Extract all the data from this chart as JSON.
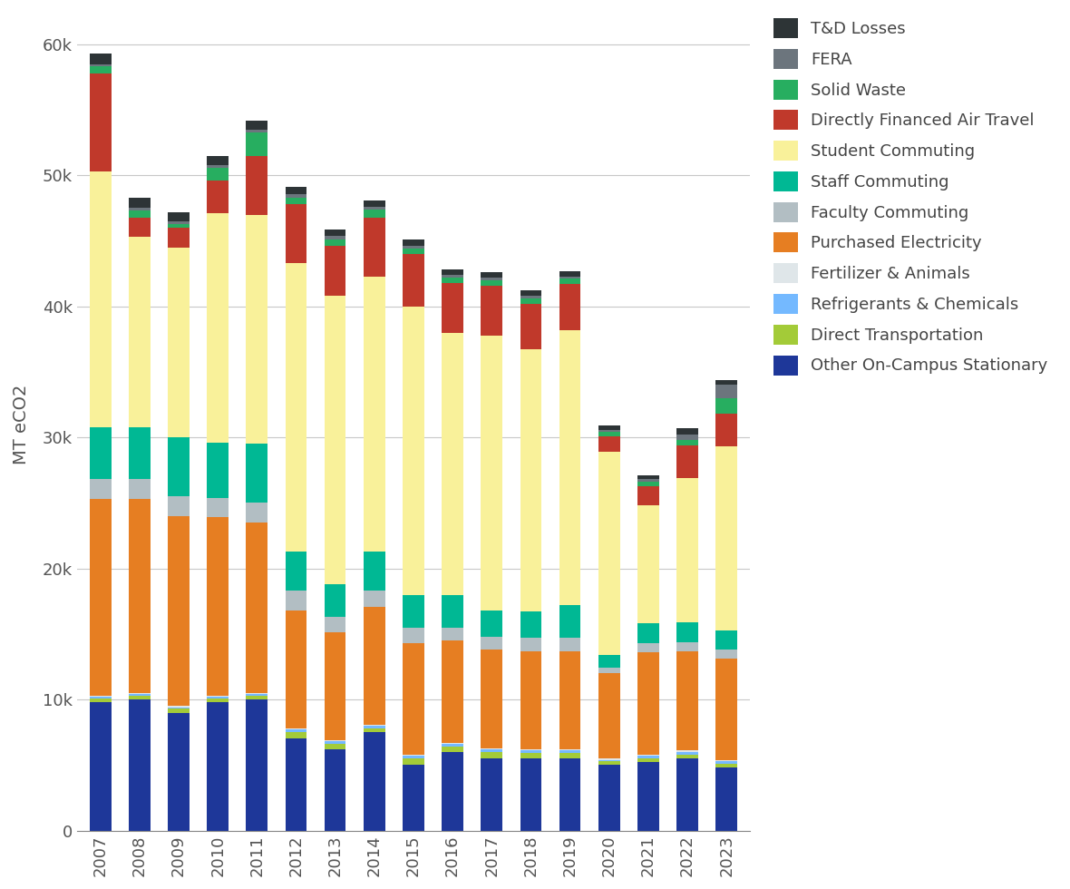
{
  "years": [
    2007,
    2008,
    2009,
    2010,
    2011,
    2012,
    2013,
    2014,
    2015,
    2016,
    2017,
    2018,
    2019,
    2020,
    2021,
    2022,
    2023
  ],
  "categories": [
    "Other On-Campus Stationary",
    "Direct Transportation",
    "Refrigerants & Chemicals",
    "Fertilizer & Animals",
    "Purchased Electricity",
    "Faculty Commuting",
    "Staff Commuting",
    "Student Commuting",
    "Directly Financed Air Travel",
    "Solid Waste",
    "FERA",
    "T&D Losses"
  ],
  "colors": [
    "#1e3799",
    "#a3cb38",
    "#74b9ff",
    "#dfe6e9",
    "#e67e22",
    "#b2bec3",
    "#00b894",
    "#f9f19a",
    "#c0392b",
    "#27ae60",
    "#6c757d",
    "#2d3436"
  ],
  "data": {
    "Other On-Campus Stationary": [
      9800,
      10000,
      9000,
      9800,
      10000,
      7000,
      6200,
      7500,
      5000,
      6000,
      5500,
      5500,
      5500,
      5000,
      5200,
      5500,
      4800
    ],
    "Direct Transportation": [
      300,
      300,
      300,
      300,
      300,
      500,
      400,
      300,
      500,
      400,
      500,
      400,
      400,
      300,
      300,
      300,
      300
    ],
    "Refrigerants & Chemicals": [
      100,
      100,
      100,
      100,
      100,
      200,
      200,
      200,
      200,
      200,
      200,
      200,
      200,
      100,
      200,
      200,
      200
    ],
    "Fertilizer & Animals": [
      100,
      100,
      100,
      100,
      100,
      100,
      100,
      100,
      100,
      100,
      100,
      100,
      100,
      100,
      100,
      100,
      100
    ],
    "Purchased Electricity": [
      15000,
      14800,
      14500,
      13600,
      13000,
      9000,
      8200,
      9000,
      8500,
      7800,
      7500,
      7500,
      7500,
      6500,
      7800,
      7600,
      7700
    ],
    "Faculty Commuting": [
      1500,
      1500,
      1500,
      1500,
      1500,
      1500,
      1200,
      1200,
      1200,
      1000,
      1000,
      1000,
      1000,
      400,
      700,
      700,
      700
    ],
    "Staff Commuting": [
      4000,
      4000,
      4500,
      4200,
      4500,
      3000,
      2500,
      3000,
      2500,
      2500,
      2000,
      2000,
      2500,
      1000,
      1500,
      1500,
      1500
    ],
    "Student Commuting": [
      19500,
      14500,
      14500,
      17500,
      17500,
      22000,
      22000,
      21000,
      22000,
      20000,
      21000,
      20000,
      21000,
      15500,
      9000,
      11000,
      14000
    ],
    "Directly Financed Air Travel": [
      7500,
      1500,
      1500,
      2500,
      4500,
      4500,
      3800,
      4500,
      4000,
      3800,
      3800,
      3500,
      3500,
      1200,
      1500,
      2500,
      2500
    ],
    "Solid Waste": [
      500,
      500,
      300,
      1000,
      1800,
      500,
      500,
      600,
      400,
      400,
      400,
      400,
      400,
      300,
      300,
      400,
      1200
    ],
    "FERA": [
      200,
      200,
      200,
      200,
      200,
      300,
      300,
      200,
      200,
      200,
      200,
      200,
      200,
      200,
      200,
      400,
      1000
    ],
    "T&D Losses": [
      800,
      800,
      700,
      700,
      700,
      500,
      500,
      500,
      500,
      400,
      400,
      400,
      400,
      300,
      300,
      500,
      400
    ]
  },
  "ylabel": "MT eCO2",
  "ylim": [
    0,
    62000
  ],
  "yticks": [
    0,
    10000,
    20000,
    30000,
    40000,
    50000,
    60000
  ],
  "ytick_labels": [
    "0",
    "10k",
    "20k",
    "30k",
    "40k",
    "50k",
    "60k"
  ],
  "background_color": "#ffffff",
  "grid_color": "#c8c8c8"
}
